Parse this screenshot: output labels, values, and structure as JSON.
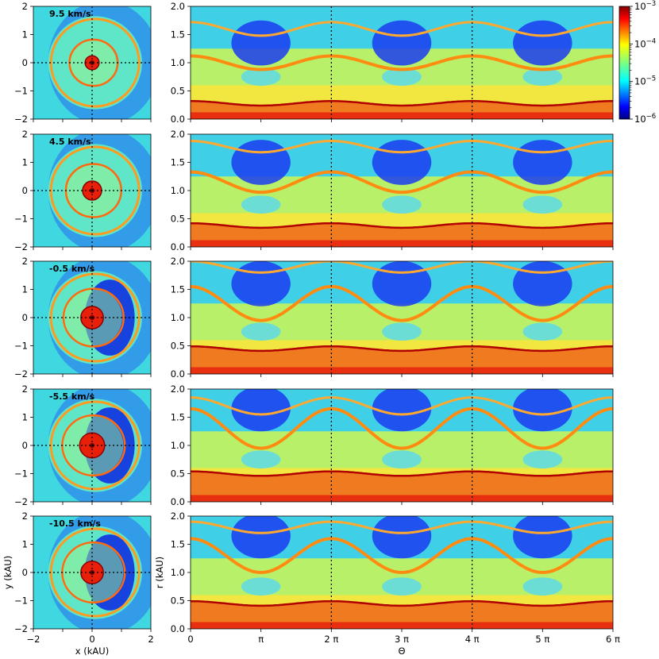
{
  "chart_data": {
    "type": "heatmap",
    "colormap": "jet",
    "scale": "log",
    "colorbar": {
      "min": 1e-06,
      "max": 0.001,
      "ticks": [
        {
          "value": 0.001,
          "base": "10",
          "exp": "−3"
        },
        {
          "value": 0.0001,
          "base": "10",
          "exp": "−4"
        },
        {
          "value": 1e-05,
          "base": "10",
          "exp": "−5"
        },
        {
          "value": 1e-06,
          "base": "10",
          "exp": "−6"
        }
      ]
    },
    "left_panels": {
      "xlabel": "x (kAU)",
      "ylabel": "y (kAU)",
      "xlim": [
        -2,
        2
      ],
      "ylim": [
        -2,
        2
      ],
      "xticks": [
        "−2",
        "0",
        "2"
      ],
      "yticks": [
        "2",
        "1",
        "0",
        "−1",
        "−2"
      ]
    },
    "right_panels": {
      "xlabel": "Θ",
      "ylabel": "r (kAU)",
      "xlim_pi": [
        0,
        6
      ],
      "ylim": [
        0,
        2
      ],
      "xticks": [
        "0",
        "π",
        "2 π",
        "3 π",
        "4 π",
        "5 π",
        "6 π"
      ],
      "yticks": [
        "2.0",
        "1.5",
        "1.0",
        "0.5",
        "0.0"
      ],
      "dotted_x_pi": [
        2,
        4
      ]
    },
    "rows": [
      {
        "label": "9.5 km/s",
        "v": 9.5,
        "inner_r": 0.28,
        "ring_r": 1.0,
        "ring_amp": 0.12,
        "outer_r": 1.6,
        "outer_amp": 0.12
      },
      {
        "label": "4.5 km/s",
        "v": 4.5,
        "inner_r": 0.38,
        "ring_r": 1.15,
        "ring_amp": 0.18,
        "outer_r": 1.78,
        "outer_amp": 0.1
      },
      {
        "label": "-0.5 km/s",
        "v": -0.5,
        "inner_r": 0.45,
        "ring_r": 1.25,
        "ring_amp": 0.3,
        "outer_r": 1.9,
        "outer_amp": 0.1
      },
      {
        "label": "-5.5 km/s",
        "v": -5.5,
        "inner_r": 0.5,
        "ring_r": 1.3,
        "ring_amp": 0.35,
        "outer_r": 1.7,
        "outer_amp": 0.15
      },
      {
        "label": "-10.5 km/s",
        "v": -10.5,
        "inner_r": 0.45,
        "ring_r": 1.3,
        "ring_amp": 0.3,
        "outer_r": 1.8,
        "outer_amp": 0.1
      }
    ]
  }
}
